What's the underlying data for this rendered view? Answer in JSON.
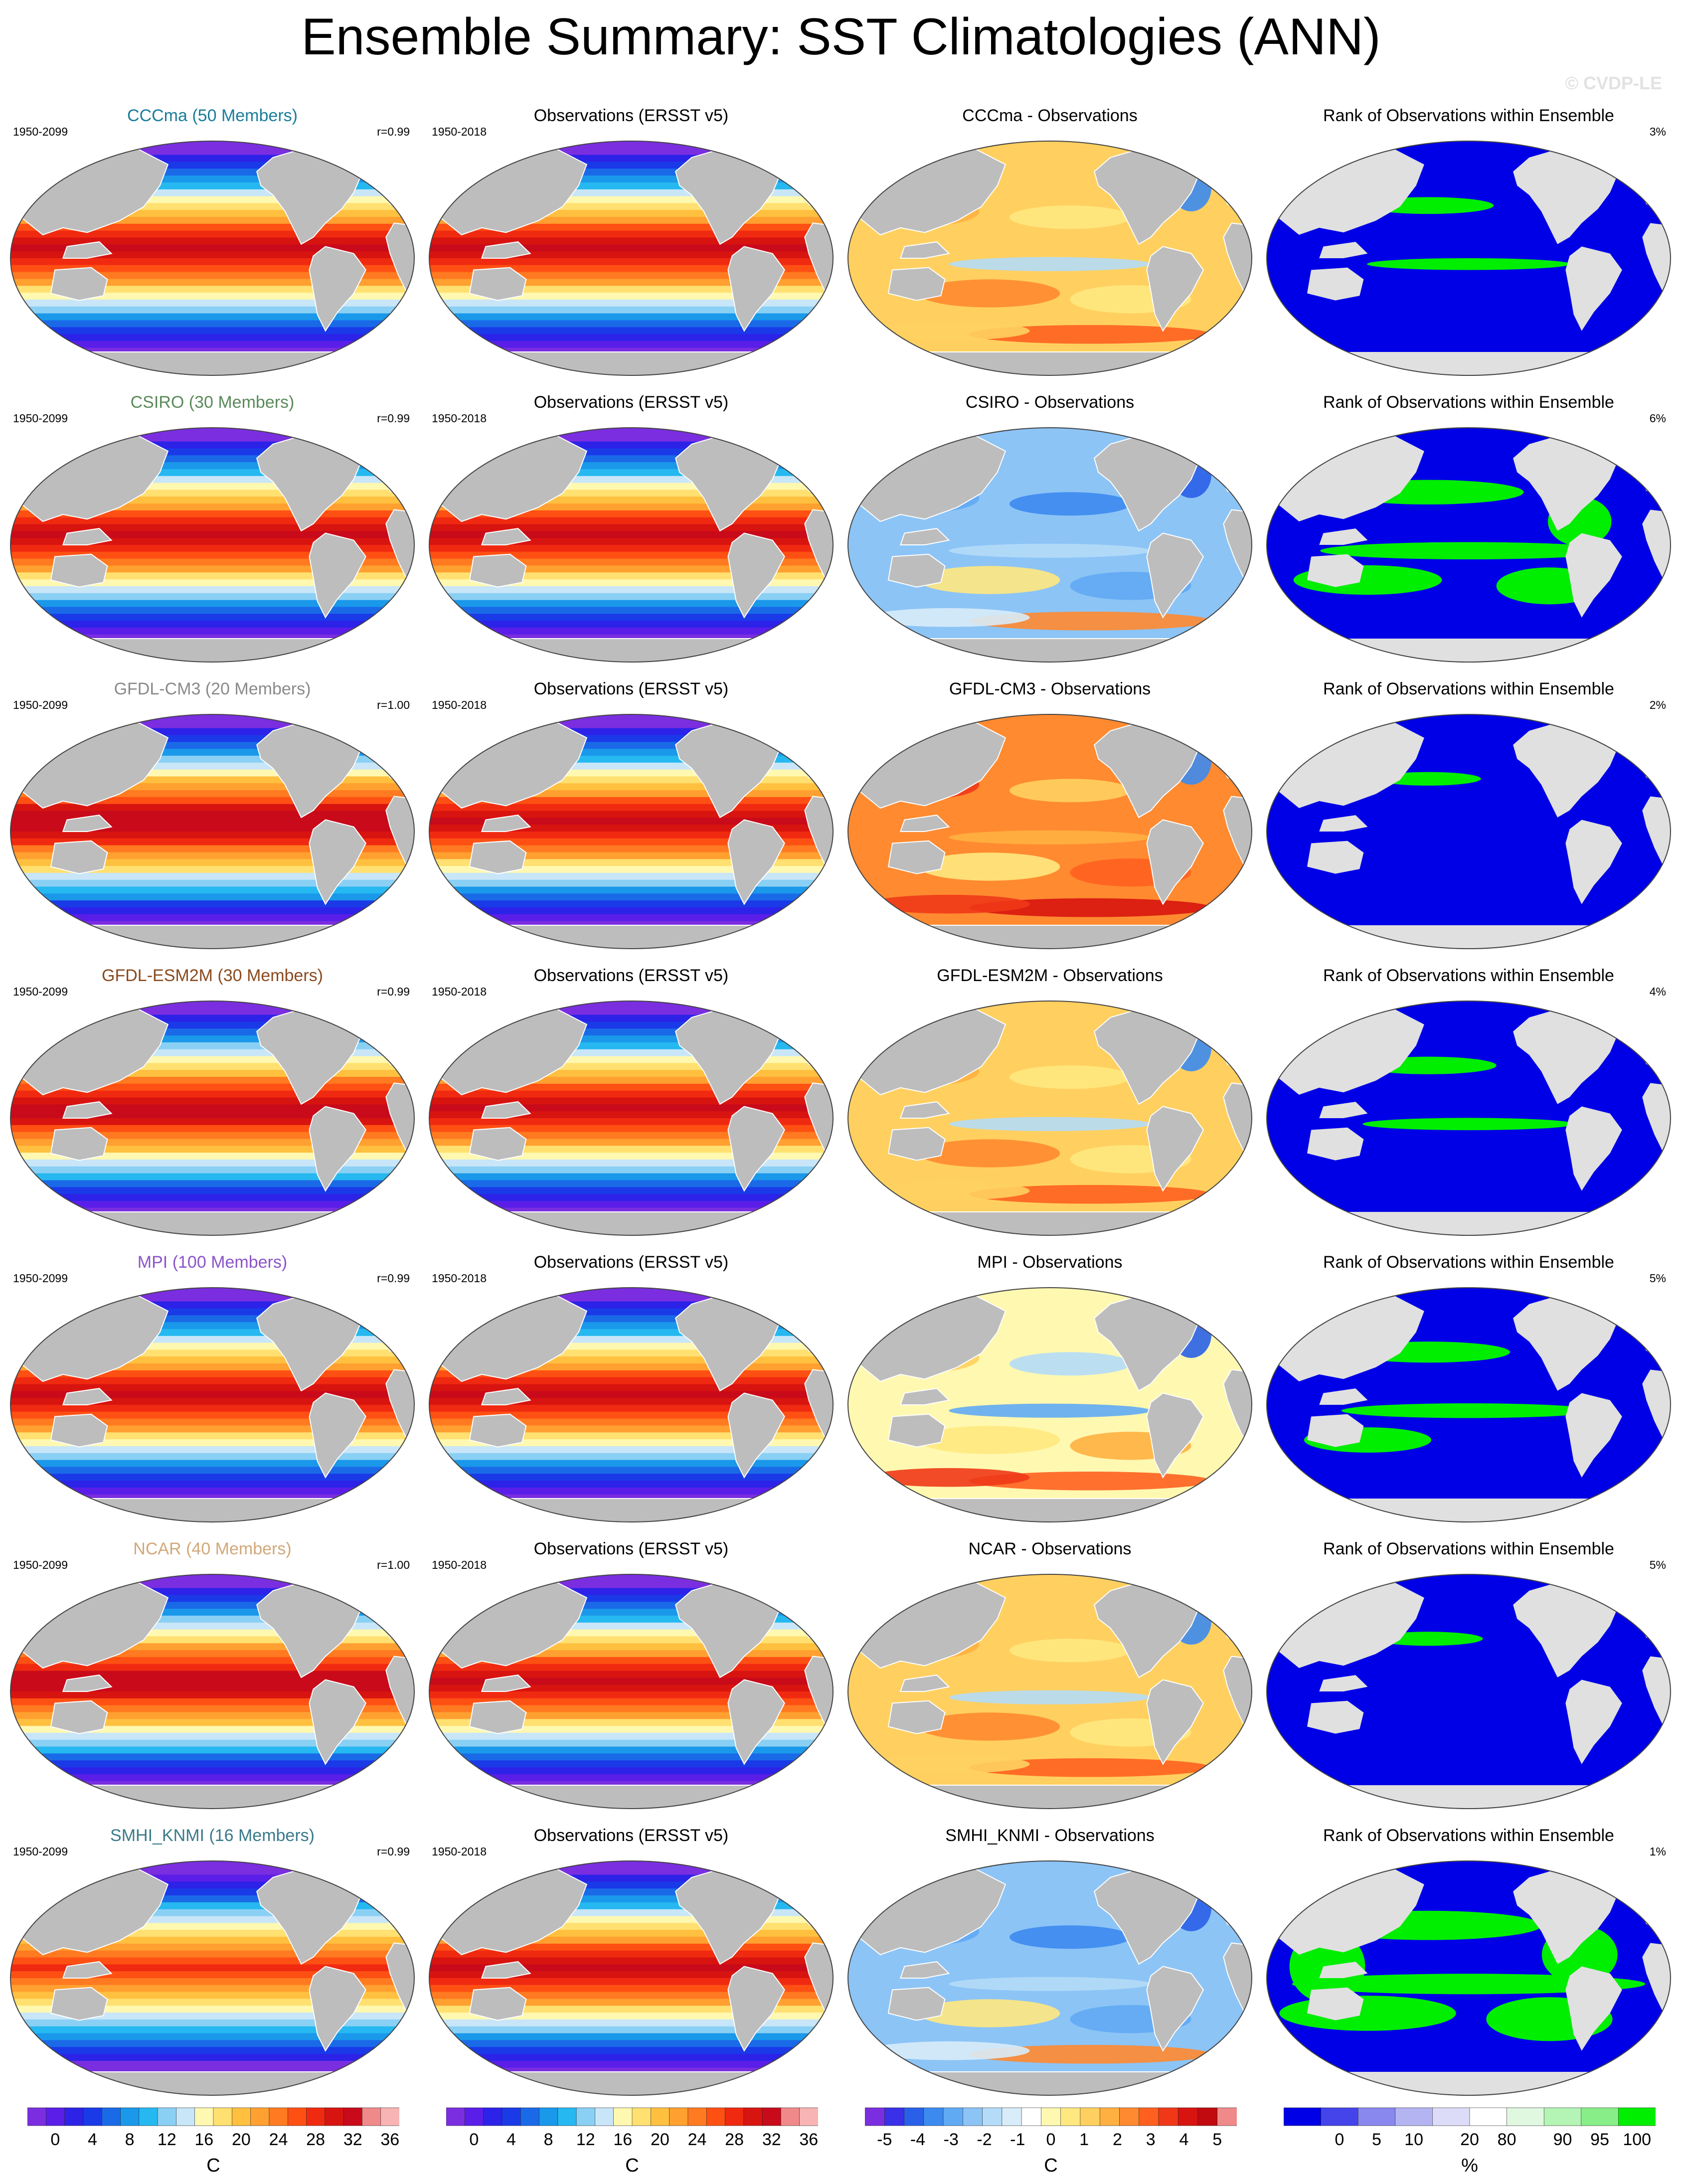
{
  "title": "Ensemble Summary: SST Climatologies (ANN)",
  "watermark": "© CVDP-LE",
  "columns": [
    "model-mean",
    "observations",
    "difference",
    "rank"
  ],
  "rows": [
    {
      "model": "CCCma (50 Members)",
      "model_color": "#1a7d9a",
      "model_period": "1950-2099",
      "r_value": "r=0.99",
      "obs_title": "Observations (ERSST v5)",
      "obs_period": "1950-2018",
      "diff_title": "CCCma - Observations",
      "rank_title": "Rank of Observations within Ensemble",
      "rank_pct": "3%",
      "diff_pattern": "warm",
      "rank_green": 0.22,
      "mean_warmth": 1.0
    },
    {
      "model": "CSIRO (30 Members)",
      "model_color": "#5a8a5a",
      "model_period": "1950-2099",
      "r_value": "r=0.99",
      "obs_title": "Observations (ERSST v5)",
      "obs_period": "1950-2018",
      "diff_title": "CSIRO - Observations",
      "rank_title": "Rank of Observations within Ensemble",
      "rank_pct": "6%",
      "diff_pattern": "cool",
      "rank_green": 0.55,
      "mean_warmth": 1.0
    },
    {
      "model": "GFDL-CM3 (20 Members)",
      "model_color": "#8a8a8a",
      "model_period": "1950-2099",
      "r_value": "r=1.00",
      "obs_title": "Observations (ERSST v5)",
      "obs_period": "1950-2018",
      "diff_title": "GFDL-CM3 - Observations",
      "rank_title": "Rank of Observations within Ensemble",
      "rank_pct": "2%",
      "diff_pattern": "hot",
      "rank_green": 0.08,
      "mean_warmth": 1.05
    },
    {
      "model": "GFDL-ESM2M (30 Members)",
      "model_color": "#8a4a1e",
      "model_period": "1950-2099",
      "r_value": "r=0.99",
      "obs_title": "Observations (ERSST v5)",
      "obs_period": "1950-2018",
      "diff_title": "GFDL-ESM2M - Observations",
      "rank_title": "Rank of Observations within Ensemble",
      "rank_pct": "4%",
      "diff_pattern": "warm",
      "rank_green": 0.25,
      "mean_warmth": 1.02
    },
    {
      "model": "MPI (100 Members)",
      "model_color": "#8a55c8",
      "model_period": "1950-2099",
      "r_value": "r=0.99",
      "obs_title": "Observations (ERSST v5)",
      "obs_period": "1950-2018",
      "diff_title": "MPI - Observations",
      "rank_title": "Rank of Observations within Ensemble",
      "rank_pct": "5%",
      "diff_pattern": "mixed",
      "rank_green": 0.4,
      "mean_warmth": 1.0
    },
    {
      "model": "NCAR (40 Members)",
      "model_color": "#d2a87a",
      "model_period": "1950-2099",
      "r_value": "r=1.00",
      "obs_title": "Observations (ERSST v5)",
      "obs_period": "1950-2018",
      "diff_title": "NCAR - Observations",
      "rank_title": "Rank of Observations within Ensemble",
      "rank_pct": "5%",
      "diff_pattern": "warm",
      "rank_green": 0.1,
      "mean_warmth": 1.03
    },
    {
      "model": "SMHI_KNMI (16 Members)",
      "model_color": "#3a7a8a",
      "model_period": "1950-2099",
      "r_value": "r=0.99",
      "obs_title": "Observations (ERSST v5)",
      "obs_period": "1950-2018",
      "diff_title": "SMHI_KNMI - Observations",
      "rank_title": "Rank of Observations within Ensemble",
      "rank_pct": "1%",
      "diff_pattern": "cool",
      "rank_green": 0.75,
      "mean_warmth": 0.88
    }
  ],
  "colorbars": [
    {
      "name": "sst",
      "colors": [
        "#7a2ee0",
        "#5a1ee8",
        "#2c22e8",
        "#1a3ae8",
        "#1a6ae8",
        "#1a98ea",
        "#26b8f0",
        "#8ad0f4",
        "#c8e6f8",
        "#fff8b0",
        "#ffe070",
        "#ffc040",
        "#ffa030",
        "#ff7a20",
        "#ff5014",
        "#f02a10",
        "#d81410",
        "#c80a1a",
        "#f08a8a",
        "#f8b4b4"
      ],
      "ticks": [
        "0",
        "4",
        "8",
        "12",
        "16",
        "20",
        "24",
        "28",
        "32",
        "36"
      ],
      "unit": "C"
    },
    {
      "name": "sst-2",
      "colors": [
        "#7a2ee0",
        "#5a1ee8",
        "#2c22e8",
        "#1a3ae8",
        "#1a6ae8",
        "#1a98ea",
        "#26b8f0",
        "#8ad0f4",
        "#c8e6f8",
        "#fff8b0",
        "#ffe070",
        "#ffc040",
        "#ffa030",
        "#ff7a20",
        "#ff5014",
        "#f02a10",
        "#d81410",
        "#c80a1a",
        "#f08a8a",
        "#f8b4b4"
      ],
      "ticks": [
        "0",
        "4",
        "8",
        "12",
        "16",
        "20",
        "24",
        "28",
        "32",
        "36"
      ],
      "unit": "C"
    },
    {
      "name": "diff",
      "colors": [
        "#7a2ee0",
        "#3a30e8",
        "#2a60e8",
        "#3c8af0",
        "#60aaf4",
        "#8cc4f6",
        "#b4dcf8",
        "#d8ecfa",
        "#ffffff",
        "#fff8b0",
        "#ffe880",
        "#ffd060",
        "#ffb040",
        "#ff8a30",
        "#ff6020",
        "#f03818",
        "#d81410",
        "#c00a10",
        "#f08a8a"
      ],
      "ticks": [
        "-5",
        "-4",
        "-3",
        "-2",
        "-1",
        "0",
        "1",
        "2",
        "3",
        "4",
        "5"
      ],
      "unit": "C"
    },
    {
      "name": "rank",
      "colors": [
        "#0000e6",
        "#4444ea",
        "#8888ee",
        "#b4b4f2",
        "#dcdcf8",
        "#ffffff",
        "#e0f8e0",
        "#b4f4b4",
        "#88ee88",
        "#00ee00"
      ],
      "ticks": [
        "0",
        "5",
        "10",
        "20",
        "80",
        "90",
        "95",
        "100"
      ],
      "unit": "%"
    }
  ]
}
